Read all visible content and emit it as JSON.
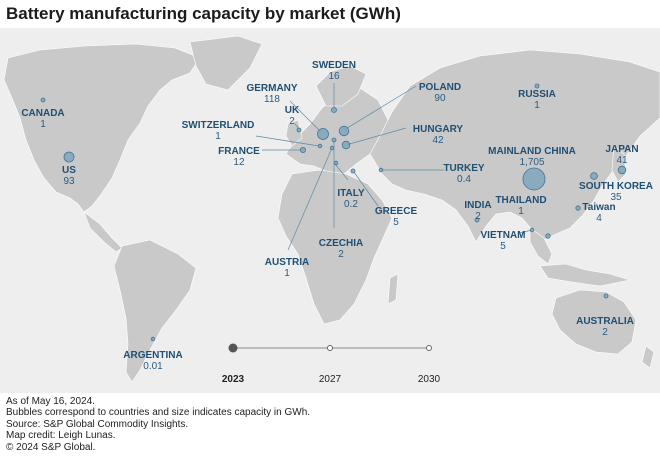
{
  "title": "Battery manufacturing capacity by market (GWh)",
  "colors": {
    "ocean": "#eeeeee",
    "land": "#c9c9c9",
    "bubble": "#7fa6bd",
    "bubble_stroke": "#3f7595",
    "label": "#1f4f73"
  },
  "markets": [
    {
      "name": "CANADA",
      "value": "1"
    },
    {
      "name": "US",
      "value": "93"
    },
    {
      "name": "ARGENTINA",
      "value": "0.01"
    },
    {
      "name": "SWEDEN",
      "value": "16"
    },
    {
      "name": "GERMANY",
      "value": "118"
    },
    {
      "name": "UK",
      "value": "2"
    },
    {
      "name": "SWITZERLAND",
      "value": "1"
    },
    {
      "name": "FRANCE",
      "value": "12"
    },
    {
      "name": "POLAND",
      "value": "90"
    },
    {
      "name": "HUNGARY",
      "value": "42"
    },
    {
      "name": "TURKEY",
      "value": "0.4"
    },
    {
      "name": "ITALY",
      "value": "0.2"
    },
    {
      "name": "GREECE",
      "value": "5"
    },
    {
      "name": "CZECHIA",
      "value": "2"
    },
    {
      "name": "AUSTRIA",
      "value": "1"
    },
    {
      "name": "RUSSIA",
      "value": "1"
    },
    {
      "name": "MAINLAND CHINA",
      "value": "1,705"
    },
    {
      "name": "JAPAN",
      "value": "41"
    },
    {
      "name": "SOUTH KOREA",
      "value": "35"
    },
    {
      "name": "Taiwan",
      "value": "4"
    },
    {
      "name": "INDIA",
      "value": "2"
    },
    {
      "name": "THAILAND",
      "value": "1"
    },
    {
      "name": "VIETNAM",
      "value": "5"
    },
    {
      "name": "AUSTRALIA",
      "value": "2"
    }
  ],
  "timeline": {
    "years": [
      "2023",
      "2027",
      "2030"
    ],
    "selected": "2023"
  },
  "notes": [
    "As of May 16, 2024.",
    "Bubbles correspond to countries and size indicates capacity in GWh.",
    "Source: S&P Global Commodity Insights.",
    "Map credit: Leigh Lunas.",
    "© 2024 S&P Global."
  ]
}
